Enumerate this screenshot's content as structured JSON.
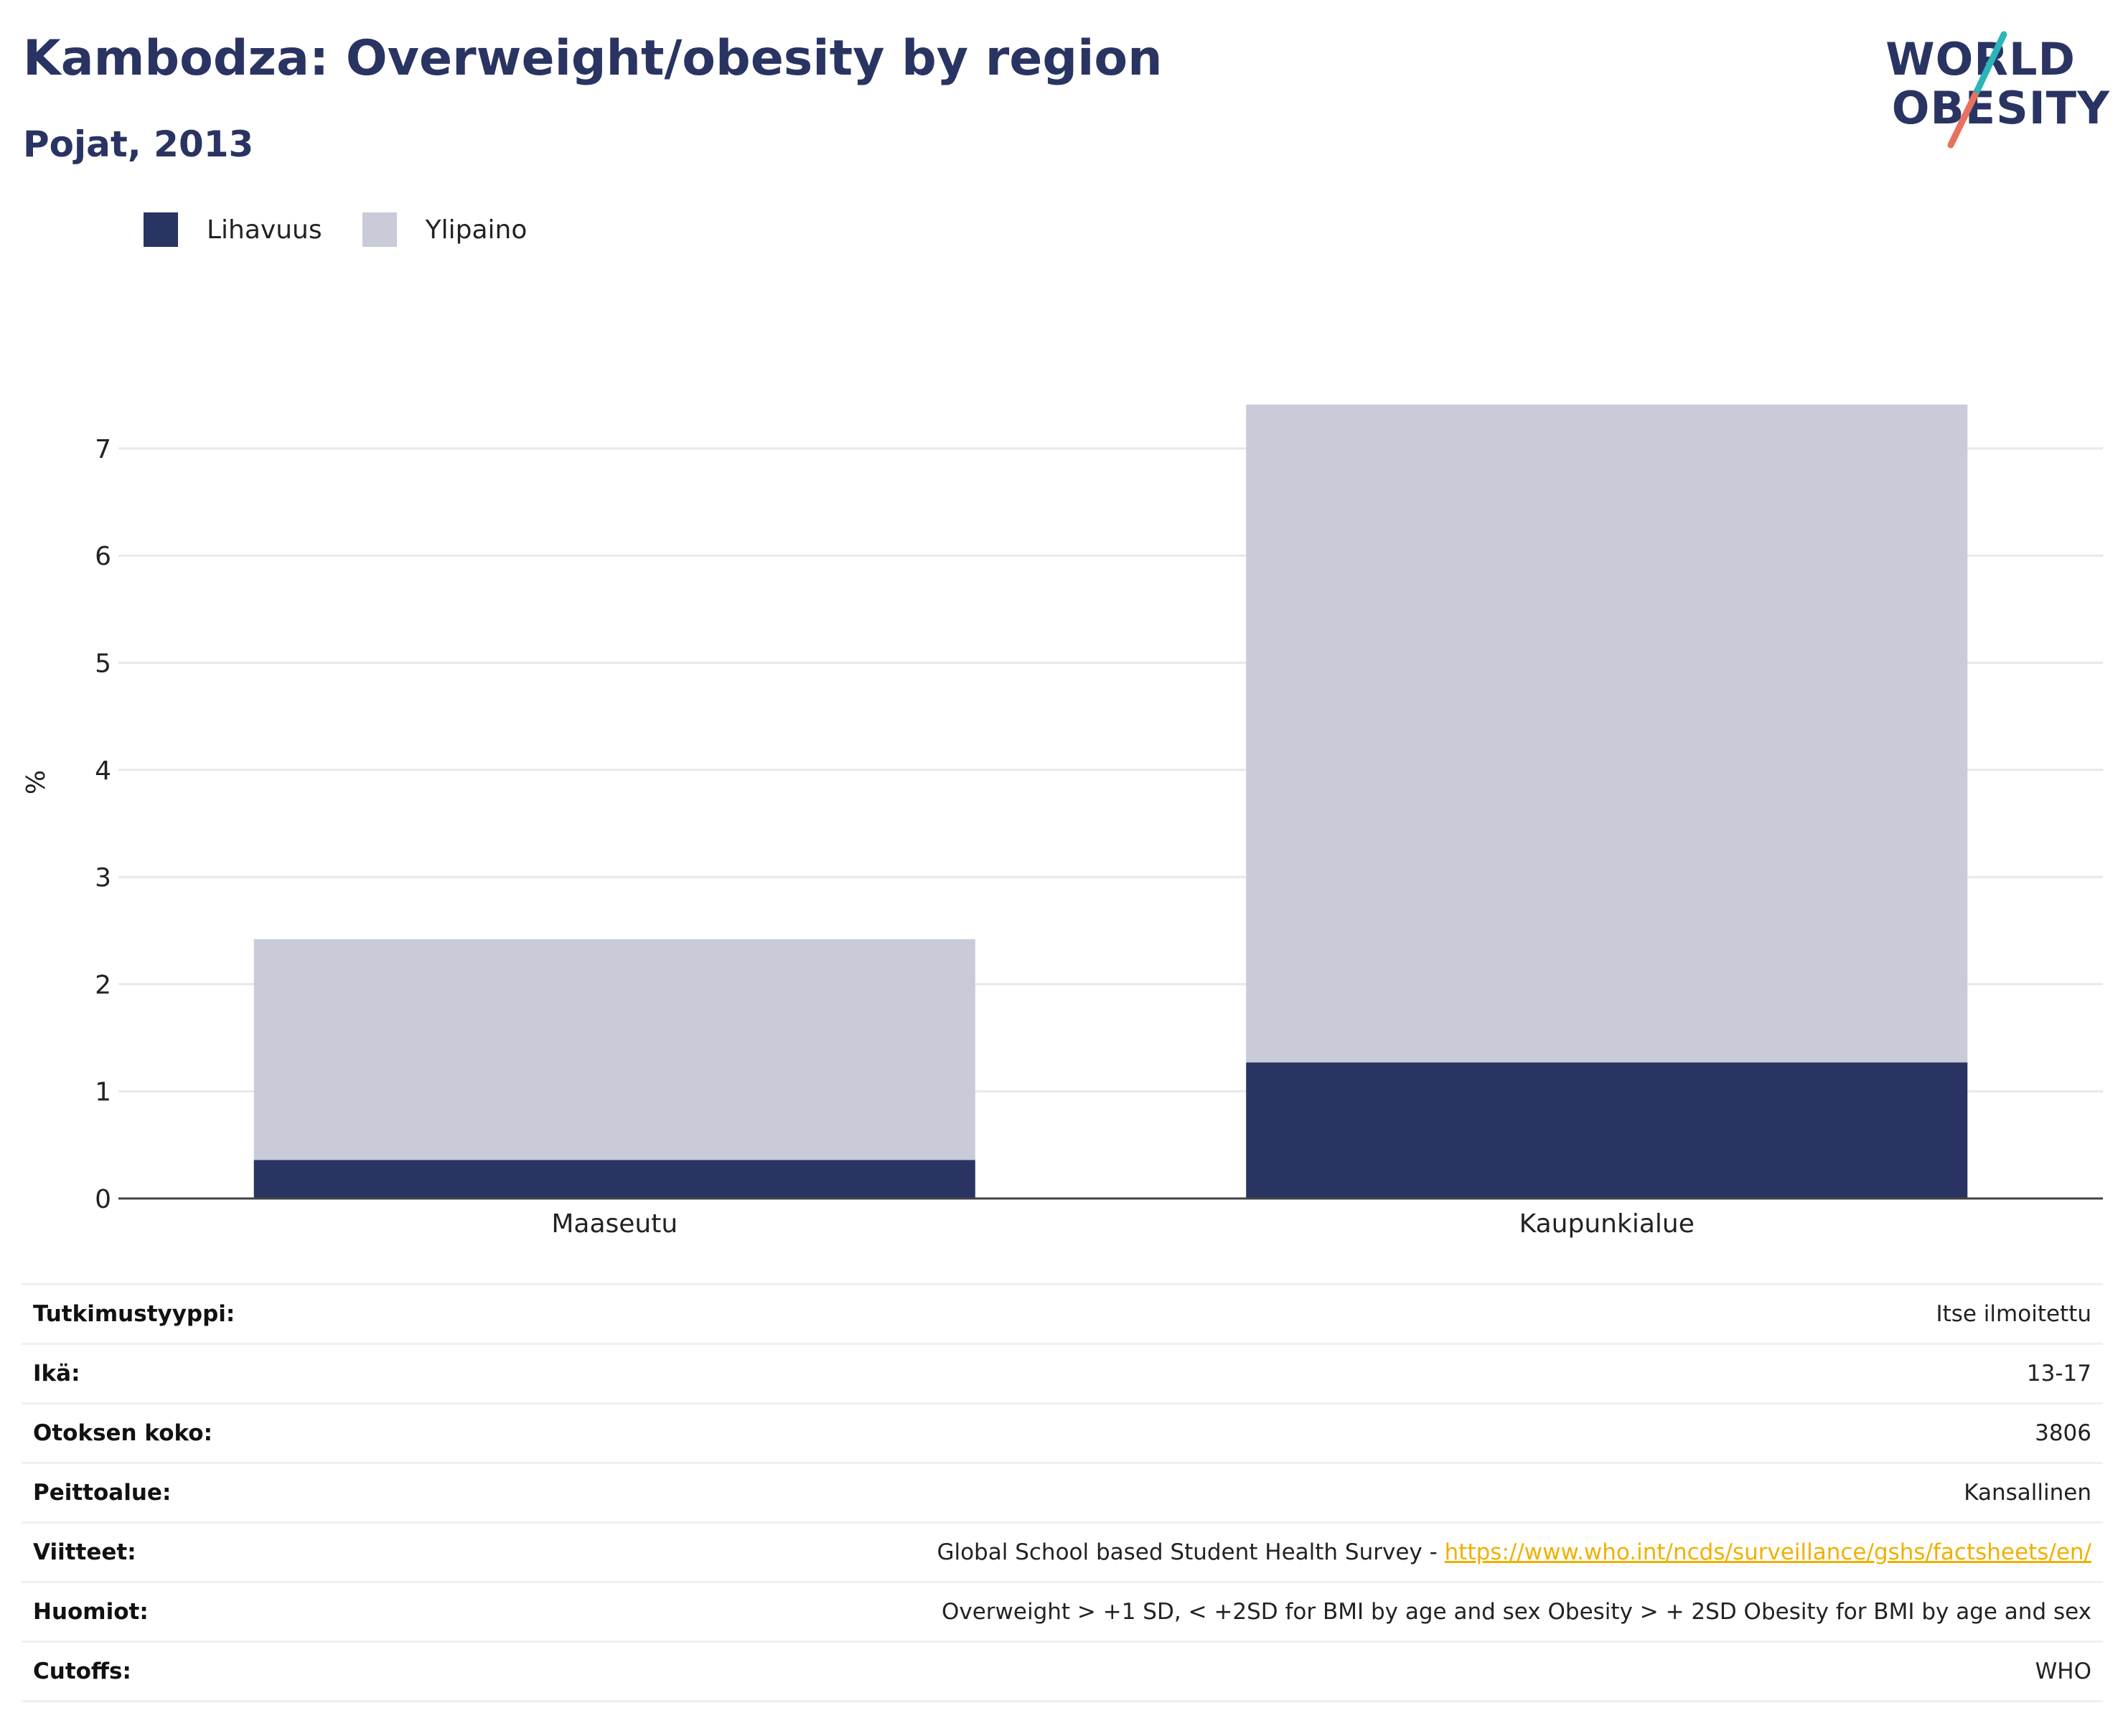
{
  "header": {
    "title": "Kambodza: Overweight/obesity by region",
    "subtitle": "Pojat, 2013"
  },
  "logo": {
    "line1": "WORLD",
    "line2": "OBESITY"
  },
  "colors": {
    "obesity": "#293462",
    "overweight": "#c9ccd8",
    "accent_teal": "#2bb5b8",
    "accent_coral": "#e8705e",
    "link": "#f0b000"
  },
  "chart_data": {
    "type": "bar",
    "stacked": true,
    "categories": [
      "Maaseutu",
      "Kaupunkialue"
    ],
    "series": [
      {
        "name": "Lihavuus",
        "values": [
          0.36,
          1.27
        ]
      },
      {
        "name": "Ylipaino",
        "values": [
          2.06,
          6.14
        ]
      }
    ],
    "ylabel": "%",
    "ylim": [
      0,
      7.5
    ],
    "yticks": [
      0,
      1,
      2,
      3,
      4,
      5,
      6,
      7
    ],
    "grid": true,
    "legend_position": "top-left"
  },
  "info": {
    "rows": [
      {
        "label": "Tutkimustyyppi:",
        "value": "Itse ilmoitettu"
      },
      {
        "label": "Ikä:",
        "value": "13-17"
      },
      {
        "label": "Otoksen koko:",
        "value": "3806"
      },
      {
        "label": "Peittoalue:",
        "value": "Kansallinen"
      },
      {
        "label": "Viitteet:",
        "value": "Global School based Student Health Survey - ",
        "link": "https://www.who.int/ncds/surveillance/gshs/factsheets/en/"
      },
      {
        "label": "Huomiot:",
        "value": "Overweight > +1 SD, < +2SD for BMI by age and sex Obesity > + 2SD Obesity for BMI by age and sex"
      },
      {
        "label": "Cutoffs:",
        "value": "WHO"
      }
    ]
  }
}
